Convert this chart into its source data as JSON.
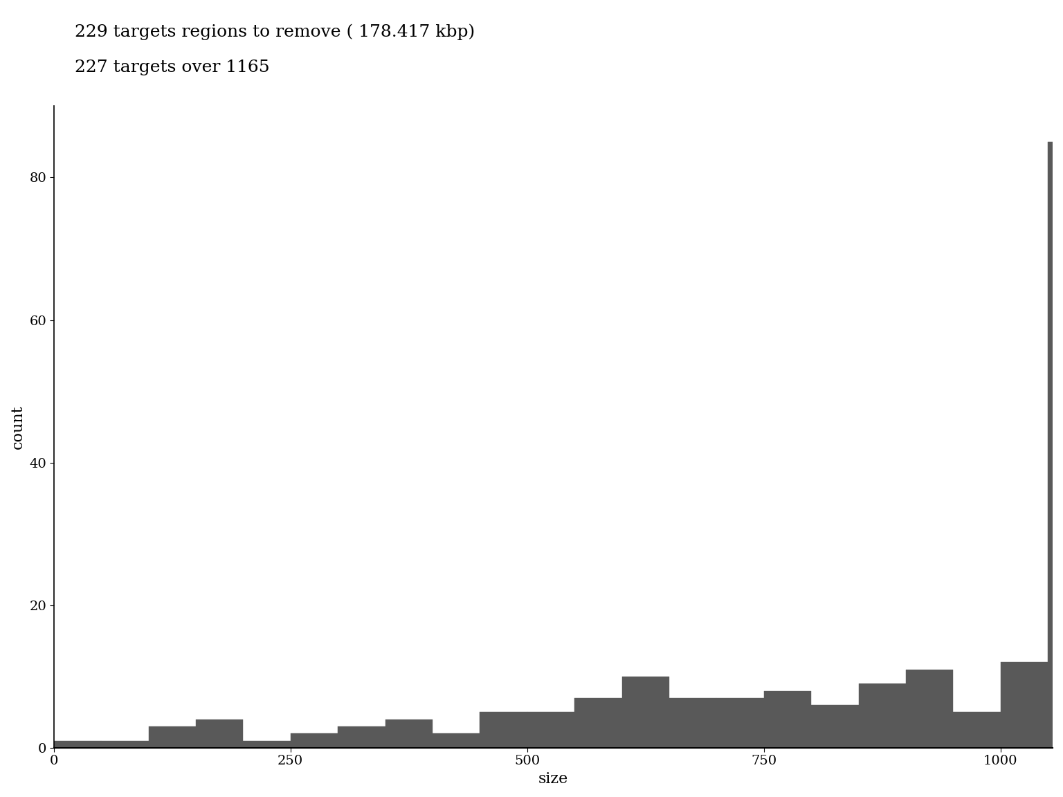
{
  "title_line1": "229 targets regions to remove ( 178.417 kbp)",
  "title_line2": "227 targets over 1165",
  "xlabel": "size",
  "ylabel": "count",
  "bar_color": "#595959",
  "background_color": "#ffffff",
  "title_fontsize": 18,
  "label_fontsize": 16,
  "tick_fontsize": 14,
  "bin_edges": [
    0,
    50,
    100,
    150,
    200,
    250,
    300,
    350,
    400,
    450,
    500,
    550,
    600,
    650,
    700,
    750,
    800,
    850,
    900,
    950,
    1000,
    1050
  ],
  "bar_heights": [
    1,
    1,
    3,
    4,
    1,
    2,
    3,
    4,
    2,
    5,
    5,
    7,
    10,
    7,
    7,
    8,
    6,
    9,
    11,
    5,
    12,
    85
  ],
  "xlim": [
    0,
    1055
  ],
  "ylim": [
    0,
    90
  ],
  "xticks": [
    0,
    250,
    500,
    750,
    1000
  ],
  "yticks": [
    0,
    20,
    40,
    60,
    80
  ]
}
